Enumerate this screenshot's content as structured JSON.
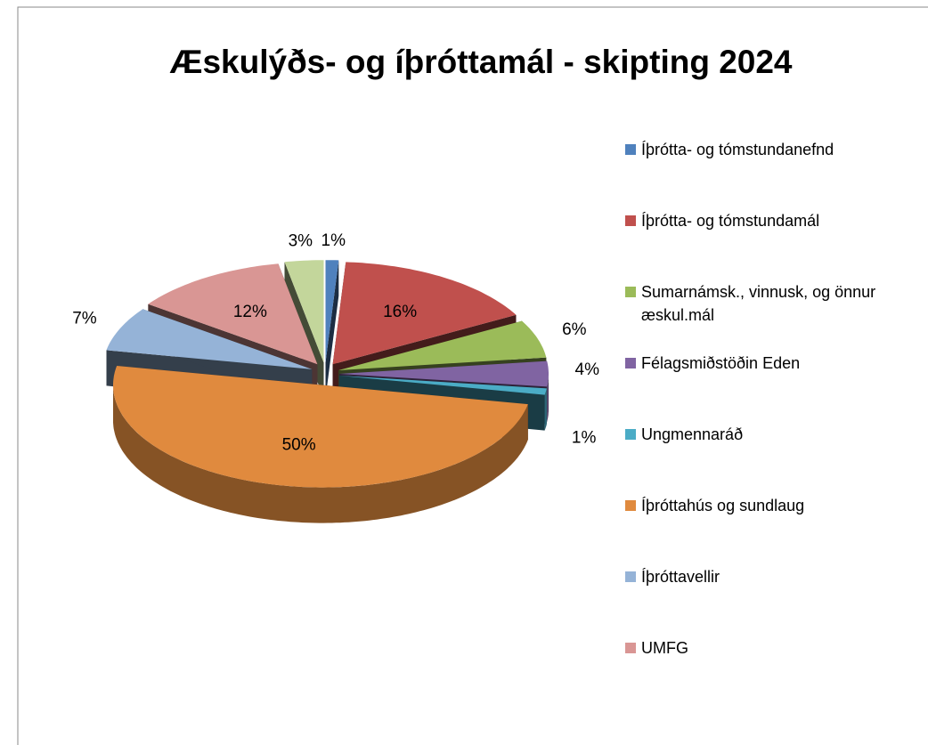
{
  "chart_data": {
    "type": "pie3d",
    "title": "Æskulýðs- og íþróttamál - skipting 2024",
    "categories": [
      "Íþrótta- og tómstundanefnd",
      "Íþrótta- og tómstundamál",
      "Sumarnámsk., vinnusk, og önnur æskul.mál",
      "Félagsmiðstöðin Eden",
      "Ungmennaráð",
      "Íþróttahús og sundlaug",
      "Íþróttavellir",
      "UMFG",
      null
    ],
    "values": [
      1,
      16,
      6,
      4,
      1,
      50,
      7,
      12,
      3
    ],
    "value_labels": [
      "1%",
      "16%",
      "6%",
      "4%",
      "1%",
      "50%",
      "7%",
      "12%",
      "3%"
    ],
    "colors": [
      "#4f81bd",
      "#c0504d",
      "#9bbb59",
      "#8064a2",
      "#4bacc6",
      "#e08a3e",
      "#95b3d7",
      "#d99694",
      "#c3d69b"
    ],
    "legend": "right"
  }
}
